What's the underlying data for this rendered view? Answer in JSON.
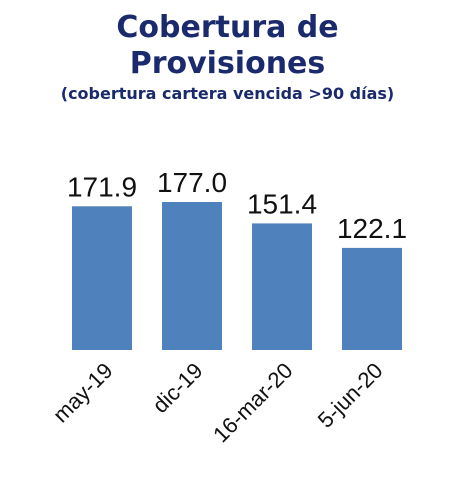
{
  "chart_data": {
    "type": "bar",
    "title": "Cobertura de Provisiones",
    "subtitle": "(cobertura cartera vencida >90 días)",
    "categories": [
      "may-19",
      "dic-19",
      "16-mar-20",
      "5-jun-20"
    ],
    "values": [
      171.9,
      177.0,
      151.4,
      122.1
    ],
    "value_labels": [
      "171.9",
      "177.0",
      "151.4",
      "122.1"
    ],
    "color": "#4f81bd"
  }
}
